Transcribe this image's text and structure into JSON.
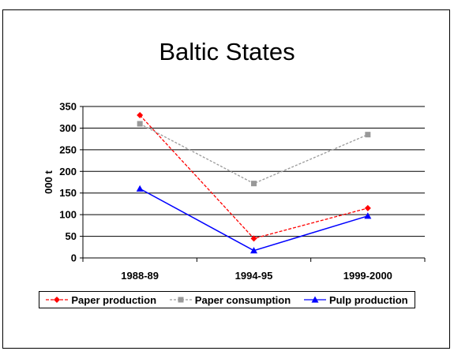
{
  "chart_data": {
    "type": "line",
    "title": "Baltic States",
    "xlabel": "",
    "ylabel": "000 t",
    "categories": [
      "1988-89",
      "1994-95",
      "1999-2000"
    ],
    "ylim": [
      0,
      350
    ],
    "yticks": [
      0,
      50,
      100,
      150,
      200,
      250,
      300,
      350
    ],
    "grid": true,
    "legend_position": "bottom",
    "series": [
      {
        "name": "Paper production",
        "values": [
          330,
          45,
          115
        ],
        "color": "#ff0000",
        "marker": "diamond",
        "dash": "dashed"
      },
      {
        "name": "Paper consumption",
        "values": [
          310,
          172,
          285
        ],
        "color": "#999999",
        "marker": "square",
        "dash": "dashed"
      },
      {
        "name": "Pulp production",
        "values": [
          160,
          17,
          97
        ],
        "color": "#0000ff",
        "marker": "triangle",
        "dash": "solid"
      }
    ]
  }
}
